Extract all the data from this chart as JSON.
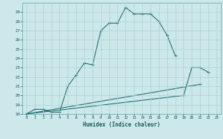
{
  "xlabel": "Humidex (Indice chaleur)",
  "background_color": "#cce8ea",
  "grid_color": "#aacfd2",
  "line_color": "#1a6b6e",
  "xlim": [
    -0.5,
    23.5
  ],
  "ylim": [
    18,
    30
  ],
  "yticks": [
    18,
    19,
    20,
    21,
    22,
    23,
    24,
    25,
    26,
    27,
    28,
    29
  ],
  "xticks": [
    0,
    1,
    2,
    3,
    4,
    5,
    6,
    7,
    8,
    9,
    10,
    11,
    12,
    13,
    14,
    15,
    16,
    17,
    18,
    19,
    20,
    21,
    22,
    23
  ],
  "line1_x": [
    0,
    1,
    2,
    3,
    4,
    5,
    6,
    7,
    8,
    9,
    10,
    11,
    12,
    13,
    14,
    15,
    16,
    17,
    18
  ],
  "line1_y": [
    18.0,
    18.5,
    18.5,
    18.2,
    18.2,
    21.0,
    22.2,
    23.5,
    23.3,
    27.0,
    27.8,
    27.8,
    29.5,
    28.8,
    28.8,
    28.8,
    28.0,
    26.5,
    24.3
  ],
  "line2_x": [
    0,
    19,
    20,
    21,
    22
  ],
  "line2_y": [
    18.0,
    20.0,
    23.0,
    23.0,
    22.5
  ],
  "line3_x": [
    0,
    21
  ],
  "line3_y": [
    18.0,
    21.2
  ]
}
